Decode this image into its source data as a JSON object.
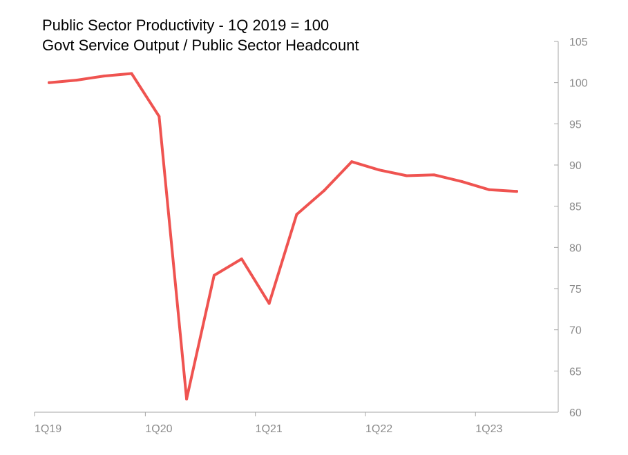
{
  "chart_data": {
    "type": "line",
    "title": "Public Sector Productivity - 1Q 2019 = 100",
    "subtitle": "Govt Service Output / Public Sector Headcount",
    "xlabel": "",
    "ylabel": "",
    "x": [
      "1Q19",
      "2Q19",
      "3Q19",
      "4Q19",
      "1Q20",
      "2Q20",
      "3Q20",
      "4Q20",
      "1Q21",
      "2Q21",
      "3Q21",
      "4Q21",
      "1Q22",
      "2Q22",
      "3Q22",
      "4Q22",
      "1Q23",
      "2Q23"
    ],
    "x_tick_labels": [
      "1Q19",
      "1Q20",
      "1Q21",
      "1Q22",
      "1Q23"
    ],
    "series": [
      {
        "values": [
          100.0,
          100.3,
          100.8,
          101.1,
          95.9,
          61.6,
          76.6,
          78.6,
          73.2,
          84.0,
          86.9,
          90.4,
          89.4,
          88.7,
          88.8,
          88.0,
          87.0,
          86.8
        ]
      }
    ],
    "ylim": [
      60,
      105
    ],
    "y_ticks": [
      60,
      65,
      70,
      75,
      80,
      85,
      90,
      95,
      100,
      105
    ],
    "y_axis_side": "right",
    "grid": false,
    "line_color": "#ef5350",
    "axis_color": "#a6a6a6",
    "tick_label_color": "#8c8c8c"
  }
}
